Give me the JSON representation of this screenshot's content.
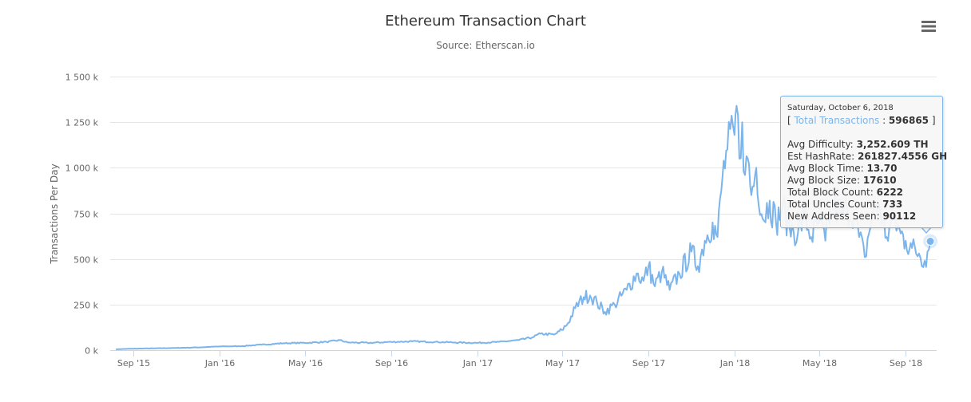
{
  "header": {
    "title": "Ethereum Transaction Chart",
    "subtitle": "Source: Etherscan.io",
    "menu_icon": "hamburger-menu-icon"
  },
  "colors": {
    "series": "#7cb5ec",
    "grid": "#e6e6e6",
    "axis_text": "#666666",
    "tooltip_border": "#7cb5ec"
  },
  "chart_data": {
    "type": "line",
    "title": "Ethereum Transaction Chart",
    "subtitle": "Source: Etherscan.io",
    "xlabel": "",
    "ylabel": "Transactions Per Day",
    "ylim": [
      0,
      1500000
    ],
    "xlim": [
      "2015-07-30",
      "2018-10-15"
    ],
    "y_ticks": [
      0,
      250000,
      500000,
      750000,
      1000000,
      1250000,
      1500000
    ],
    "y_tick_labels": [
      "0 k",
      "250 k",
      "500 k",
      "750 k",
      "1 000 k",
      "1 250 k",
      "1 500 k"
    ],
    "x_ticks": [
      "2015-09-01",
      "2016-01-01",
      "2016-05-01",
      "2016-09-01",
      "2017-01-01",
      "2017-05-01",
      "2017-09-01",
      "2018-01-01",
      "2018-05-01",
      "2018-09-01"
    ],
    "x_tick_labels": [
      "Sep '15",
      "Jan '16",
      "May '16",
      "Sep '16",
      "Jan '17",
      "May '17",
      "Sep '17",
      "Jan '18",
      "May '18",
      "Sep '18"
    ],
    "grid": true,
    "legend": "none",
    "series": [
      {
        "name": "Total Transactions",
        "x": [
          "2015-08-07",
          "2015-09-01",
          "2015-10-01",
          "2015-11-01",
          "2015-12-01",
          "2016-01-01",
          "2016-02-01",
          "2016-03-01",
          "2016-04-01",
          "2016-05-01",
          "2016-06-01",
          "2016-06-20",
          "2016-07-01",
          "2016-08-01",
          "2016-09-01",
          "2016-10-01",
          "2016-11-01",
          "2016-12-01",
          "2017-01-01",
          "2017-02-01",
          "2017-03-01",
          "2017-03-20",
          "2017-04-01",
          "2017-04-20",
          "2017-05-01",
          "2017-05-10",
          "2017-05-20",
          "2017-06-01",
          "2017-06-10",
          "2017-06-20",
          "2017-07-01",
          "2017-07-15",
          "2017-08-01",
          "2017-08-15",
          "2017-08-25",
          "2017-09-01",
          "2017-09-10",
          "2017-09-20",
          "2017-10-01",
          "2017-10-15",
          "2017-11-01",
          "2017-11-10",
          "2017-11-20",
          "2017-12-01",
          "2017-12-08",
          "2017-12-15",
          "2017-12-22",
          "2018-01-01",
          "2018-01-04",
          "2018-01-08",
          "2018-01-12",
          "2018-01-16",
          "2018-01-20",
          "2018-01-25",
          "2018-02-01",
          "2018-02-10",
          "2018-02-20",
          "2018-03-01",
          "2018-03-10",
          "2018-03-20",
          "2018-04-01",
          "2018-04-10",
          "2018-04-20",
          "2018-05-01",
          "2018-05-10",
          "2018-05-20",
          "2018-06-01",
          "2018-06-10",
          "2018-06-20",
          "2018-06-27",
          "2018-07-05",
          "2018-07-15",
          "2018-07-25",
          "2018-08-05",
          "2018-08-15",
          "2018-08-25",
          "2018-09-01",
          "2018-09-10",
          "2018-09-20",
          "2018-09-28",
          "2018-10-06"
        ],
        "y": [
          5000,
          8000,
          10000,
          12000,
          15000,
          20000,
          22000,
          30000,
          38000,
          40000,
          45000,
          55000,
          42000,
          40000,
          45000,
          48000,
          45000,
          42000,
          40000,
          45000,
          55000,
          70000,
          90000,
          85000,
          110000,
          150000,
          230000,
          290000,
          300000,
          260000,
          210000,
          250000,
          330000,
          420000,
          380000,
          460000,
          350000,
          430000,
          330000,
          420000,
          540000,
          460000,
          600000,
          700000,
          620000,
          950000,
          1100000,
          1180000,
          1340000,
          1050000,
          1250000,
          960000,
          1050000,
          850000,
          1000000,
          720000,
          820000,
          700000,
          780000,
          680000,
          640000,
          740000,
          620000,
          700000,
          600000,
          820000,
          720000,
          780000,
          760000,
          620000,
          510000,
          740000,
          800000,
          620000,
          720000,
          640000,
          600000,
          560000,
          530000,
          490000,
          596865
        ]
      }
    ]
  },
  "tooltip": {
    "date": "Saturday, October 6, 2018",
    "series_name": "Total Transactions",
    "series_value": "596865",
    "items": [
      {
        "label": "Avg Difficulty:",
        "value": "3,252.609 TH"
      },
      {
        "label": "Est HashRate:",
        "value": "261827.4556 GH"
      },
      {
        "label": "Avg Block Time:",
        "value": "13.70"
      },
      {
        "label": "Avg Block Size:",
        "value": "17610"
      },
      {
        "label": "Total Block Count:",
        "value": "6222"
      },
      {
        "label": "Total Uncles Count:",
        "value": "733"
      },
      {
        "label": "New Address Seen:",
        "value": "90112"
      }
    ]
  }
}
